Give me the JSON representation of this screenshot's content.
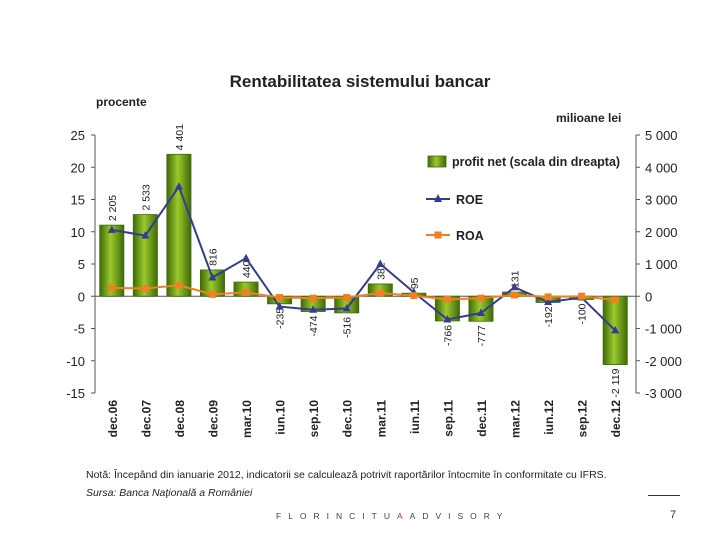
{
  "chart_data": {
    "type": "bar+line",
    "title": "Rentabilitatea sistemului bancar",
    "ylabel_left": "procente",
    "ylabel_right": "milioane lei",
    "categories": [
      "dec.06",
      "dec.07",
      "dec.08",
      "dec.09",
      "mar.10",
      "iun.10",
      "sep.10",
      "dec.10",
      "mar.11",
      "iun.11",
      "sep.11",
      "dec.11",
      "mar.12",
      "iun.12",
      "sep.12",
      "dec.12"
    ],
    "bar_labels": [
      "2 205",
      "2 533",
      "4 401",
      "816",
      "440",
      "-235",
      "-474",
      "-516",
      "382",
      "95",
      "-766",
      "-777",
      "131",
      "-192",
      "-100",
      "-2 119"
    ],
    "series": [
      {
        "name": "profit net (scala din dreapta)",
        "axis": "right",
        "kind": "bar",
        "values": [
          2205,
          2533,
          4401,
          816,
          440,
          -235,
          -474,
          -516,
          382,
          95,
          -766,
          -777,
          131,
          -192,
          -100,
          -2119
        ]
      },
      {
        "name": "ROE",
        "axis": "left",
        "kind": "line",
        "marker": "triangle",
        "values": [
          10.3,
          9.4,
          17.0,
          2.9,
          5.9,
          -1.6,
          -2.1,
          -1.9,
          5.0,
          0.6,
          -3.6,
          -2.6,
          1.4,
          -0.9,
          -0.2,
          -5.3
        ]
      },
      {
        "name": "ROA",
        "axis": "left",
        "kind": "line",
        "marker": "square",
        "values": [
          1.3,
          1.2,
          1.7,
          0.3,
          0.6,
          -0.2,
          -0.3,
          -0.2,
          0.5,
          0.1,
          -0.5,
          -0.3,
          0.2,
          -0.1,
          0.0,
          -0.6
        ]
      }
    ],
    "ylim_left": [
      -15,
      25
    ],
    "ylim_right": [
      -3000,
      5000
    ],
    "left_ticks": [
      "25",
      "20",
      "15",
      "10",
      "5",
      "0",
      "-5",
      "-10",
      "-15"
    ],
    "right_ticks": [
      "5 000",
      "4 000",
      "3 000",
      "2 000",
      "1 000",
      "0",
      "-1 000",
      "-2 000",
      "-3 000"
    ],
    "legend_position": "top-right",
    "colors": {
      "bar": "#7aa51a",
      "bar_dark": "#3f6a08",
      "roe": "#333d8f",
      "roa": "#f08020"
    }
  },
  "labels": {
    "note": "Notă: Începând din ianuarie 2012, indicatorii se calculează potrivit raportărilor întocmite în conformitate cu IFRS.",
    "source": "Sursa: Banca Naţională a României",
    "brand_prefix": "FLORINCITU",
    "brand_suffix": "ADVISORY",
    "page_number": "7"
  }
}
